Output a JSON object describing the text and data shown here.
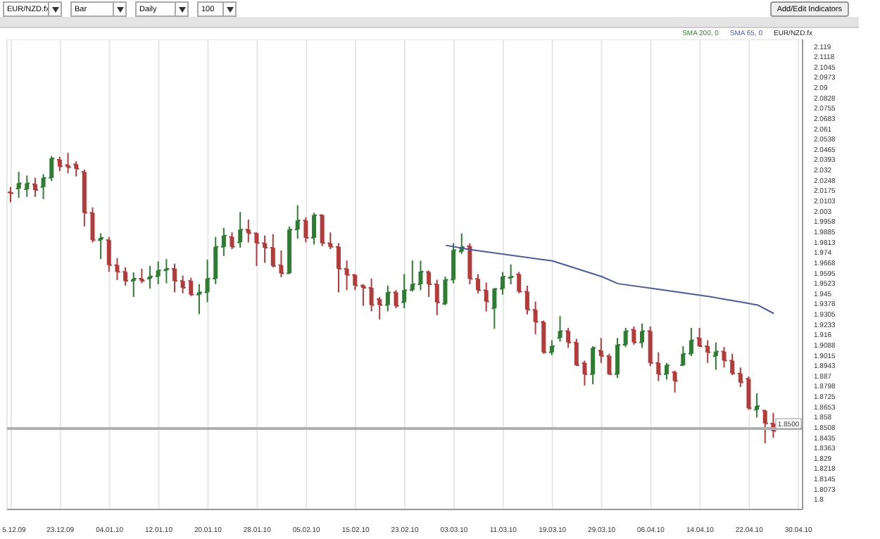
{
  "chart_data": {
    "type": "candlestick",
    "categories": [
      "5.12.09",
      null,
      null,
      null,
      null,
      null,
      "23.12.09",
      null,
      null,
      null,
      null,
      null,
      "04.01.10",
      null,
      null,
      null,
      null,
      null,
      "12.01.10",
      null,
      null,
      null,
      null,
      null,
      "20.01.10",
      null,
      null,
      null,
      null,
      null,
      "28.01.10",
      null,
      null,
      null,
      null,
      null,
      "05.02.10",
      null,
      null,
      null,
      null,
      null,
      "15.02.10",
      null,
      null,
      null,
      null,
      null,
      "23.02.10",
      null,
      null,
      null,
      null,
      null,
      "03.03.10",
      null,
      null,
      null,
      null,
      null,
      "11.03.10",
      null,
      null,
      null,
      null,
      null,
      "19.03.10",
      null,
      null,
      null,
      null,
      null,
      "29.03.10",
      null,
      null,
      null,
      null,
      null,
      "06.04.10",
      null,
      null,
      null,
      null,
      null,
      "14.04.10",
      null,
      null,
      null,
      null,
      null,
      "22.04.10",
      null,
      null,
      null,
      null,
      null,
      "30.04.10"
    ],
    "series": [
      {
        "color": "#333333",
        "ohlc": [
          [
            2.0163,
            2.0201,
            2.0093,
            2.0157
          ],
          [
            2.0189,
            2.0307,
            2.0125,
            2.0227
          ],
          [
            2.0185,
            2.0281,
            2.0131,
            2.0227
          ],
          [
            2.0221,
            2.0265,
            2.0131,
            2.0179
          ],
          [
            2.0201,
            2.0291,
            2.0115,
            2.0265
          ],
          [
            2.0265,
            2.0419,
            2.0243,
            2.0403
          ],
          [
            2.0393,
            2.0413,
            2.0313,
            2.0345
          ],
          [
            2.0355,
            2.0441,
            2.0297,
            2.0339
          ],
          [
            2.0361,
            2.0381,
            2.0275,
            2.0329
          ],
          [
            2.0307,
            2.0323,
            1.9923,
            2.0019
          ],
          [
            2.0019,
            2.0057,
            1.9811,
            1.9827
          ],
          [
            1.9827,
            1.9875,
            1.9693,
            1.9843
          ],
          [
            1.9827,
            1.9849,
            1.9603,
            1.9651
          ],
          [
            1.9651,
            1.9699,
            1.9545,
            1.9603
          ],
          [
            1.9603,
            1.9635,
            1.9507,
            1.9539
          ],
          [
            1.9539,
            1.96,
            1.9427,
            1.9555
          ],
          [
            1.9555,
            1.9625,
            1.9523,
            1.9539
          ],
          [
            1.9555,
            1.9645,
            1.9485,
            1.9571
          ],
          [
            1.9571,
            1.9677,
            1.9517,
            1.9613
          ],
          [
            1.9613,
            1.9693,
            1.9523,
            1.9625
          ],
          [
            1.9625,
            1.9661,
            1.9459,
            1.9539
          ],
          [
            1.9539,
            1.9577,
            1.9453,
            1.9491
          ],
          [
            1.9539,
            1.9561,
            1.9433,
            1.9443
          ],
          [
            1.9443,
            1.9517,
            1.9305,
            1.9459
          ],
          [
            1.9459,
            1.9689,
            1.9389,
            1.9555
          ],
          [
            1.9555,
            1.9849,
            1.9517,
            1.9779
          ],
          [
            1.9779,
            1.9913,
            1.9715,
            1.9859
          ],
          [
            1.9849,
            1.9881,
            1.9763,
            1.9779
          ],
          [
            1.9811,
            2.0025,
            1.9773,
            1.9901
          ],
          [
            1.9901,
            1.9971,
            1.9811,
            1.9875
          ],
          [
            1.9875,
            1.9881,
            1.9645,
            1.9805
          ],
          [
            1.9805,
            1.9859,
            1.9667,
            1.9773
          ],
          [
            1.9773,
            1.9869,
            1.9635,
            1.9645
          ],
          [
            1.9651,
            1.9753,
            1.9565,
            1.9593
          ],
          [
            1.9593,
            1.9923,
            1.9587,
            1.9901
          ],
          [
            1.9901,
            2.0073,
            1.9837,
            1.9965
          ],
          [
            1.9965,
            1.9987,
            1.9811,
            1.9843
          ],
          [
            1.9843,
            2.0019,
            1.9795,
            2.0003
          ],
          [
            2.0003,
            2.0009,
            1.9785,
            1.9805
          ],
          [
            1.9805,
            1.9881,
            1.9763,
            1.9779
          ],
          [
            1.9779,
            1.9805,
            1.9459,
            1.9625
          ],
          [
            1.9625,
            1.9683,
            1.9475,
            1.9581
          ],
          [
            1.9581,
            1.9587,
            1.9475,
            1.9507
          ],
          [
            1.9507,
            1.9517,
            1.9363,
            1.9491
          ],
          [
            1.9491,
            1.9555,
            1.9325,
            1.9369
          ],
          [
            1.9411,
            1.9427,
            1.9267,
            1.9369
          ],
          [
            1.9369,
            1.9507,
            1.9325,
            1.9459
          ],
          [
            1.9459,
            1.9475,
            1.9347,
            1.9363
          ],
          [
            1.9389,
            1.9587,
            1.9347,
            1.9475
          ],
          [
            1.9475,
            1.9683,
            1.9465,
            1.9517
          ],
          [
            1.9516,
            1.9682,
            1.9474,
            1.9605
          ],
          [
            1.9602,
            1.9612,
            1.9426,
            1.9516
          ],
          [
            1.9516,
            1.9548,
            1.9298,
            1.9388
          ],
          [
            1.9378,
            1.957,
            1.9368,
            1.9548
          ],
          [
            1.9548,
            1.9804,
            1.9522,
            1.9756
          ],
          [
            1.9746,
            1.9874,
            1.973,
            1.9778
          ],
          [
            1.9784,
            1.9804,
            1.9516,
            1.9554
          ],
          [
            1.9554,
            1.9586,
            1.9452,
            1.9474
          ],
          [
            1.9474,
            1.9528,
            1.9324,
            1.9394
          ],
          [
            1.9346,
            1.949,
            1.9202,
            1.9484
          ],
          [
            1.9484,
            1.9602,
            1.9442,
            1.957
          ],
          [
            1.956,
            1.9656,
            1.9516,
            1.957
          ],
          [
            1.9586,
            1.9602,
            1.9452,
            1.9464
          ],
          [
            1.9464,
            1.9506,
            1.9304,
            1.9336
          ],
          [
            1.9336,
            1.9394,
            1.9164,
            1.925
          ],
          [
            1.925,
            1.926,
            1.9026,
            1.9036
          ],
          [
            1.9036,
            1.9122,
            1.9016,
            1.908
          ],
          [
            1.9138,
            1.9292,
            1.9112,
            1.9186
          ],
          [
            1.9186,
            1.9208,
            1.9068,
            1.9106
          ],
          [
            1.9106,
            1.9132,
            1.894,
            1.8946
          ],
          [
            1.8962,
            1.8978,
            1.8802,
            1.8882
          ],
          [
            1.8882,
            1.908,
            1.8812,
            1.9068
          ],
          [
            1.9048,
            1.9138,
            1.8962,
            1.901
          ],
          [
            1.901,
            1.9026,
            1.8876,
            1.8882
          ],
          [
            1.8882,
            1.9138,
            1.8856,
            1.909
          ],
          [
            1.909,
            1.9208,
            1.9074,
            1.9186
          ],
          [
            1.9196,
            1.9218,
            1.909,
            1.9106
          ],
          [
            1.9106,
            1.924,
            1.9068,
            1.9186
          ],
          [
            1.9186,
            1.9218,
            1.894,
            1.8962
          ],
          [
            1.8962,
            1.9036,
            1.8834,
            1.8882
          ],
          [
            1.8882,
            1.8962,
            1.8844,
            1.8946
          ],
          [
            1.8898,
            1.8908,
            1.8754,
            1.8834
          ],
          [
            1.8946,
            1.908,
            1.894,
            1.9026
          ],
          [
            1.9026,
            1.9208,
            1.901,
            1.9122
          ],
          [
            1.9138,
            1.9208,
            1.9074,
            1.908
          ],
          [
            1.908,
            1.9122,
            1.8962,
            1.9036
          ],
          [
            1.901,
            1.9106,
            1.8914,
            1.9042
          ],
          [
            1.9042,
            1.9074,
            1.893,
            1.8978
          ],
          [
            1.8978,
            1.9026,
            1.8876,
            1.8888
          ],
          [
            1.8888,
            1.893,
            1.8792,
            1.8824
          ],
          [
            1.885,
            1.8866,
            1.8632,
            1.8642
          ],
          [
            1.8632,
            1.8748,
            1.8578,
            1.8658
          ],
          [
            1.8626,
            1.8632,
            1.8396,
            1.8536
          ],
          [
            1.8536,
            1.861,
            1.8434,
            1.8482
          ],
          null,
          null,
          null
        ],
        "colors": [
          "#b53a3a",
          "#2f7d32",
          "#2f7d32",
          "#b53a3a",
          "#2f7d32",
          "#2f7d32",
          "#b53a3a",
          "#b53a3a",
          "#b53a3a",
          "#b53a3a",
          "#b53a3a",
          "#2f7d32",
          "#b53a3a",
          "#b53a3a",
          "#b53a3a",
          "#2f7d32",
          "#b53a3a",
          "#2f7d32",
          "#2f7d32",
          "#2f7d32",
          "#b53a3a",
          "#b53a3a",
          "#b53a3a",
          "#2f7d32",
          "#2f7d32",
          "#2f7d32",
          "#2f7d32",
          "#b53a3a",
          "#2f7d32",
          "#b53a3a",
          "#b53a3a",
          "#b53a3a",
          "#b53a3a",
          "#b53a3a",
          "#2f7d32",
          "#2f7d32",
          "#b53a3a",
          "#2f7d32",
          "#b53a3a",
          "#b53a3a",
          "#b53a3a",
          "#b53a3a",
          "#b53a3a",
          "#b53a3a",
          "#b53a3a",
          "#b53a3a",
          "#2f7d32",
          "#b53a3a",
          "#2f7d32",
          "#2f7d32",
          "#2f7d32",
          "#b53a3a",
          "#b53a3a",
          "#2f7d32",
          "#2f7d32",
          "#2f7d32",
          "#b53a3a",
          "#b53a3a",
          "#b53a3a",
          "#2f7d32",
          "#2f7d32",
          "#2f7d32",
          "#b53a3a",
          "#b53a3a",
          "#b53a3a",
          "#b53a3a",
          "#2f7d32",
          "#2f7d32",
          "#b53a3a",
          "#b53a3a",
          "#b53a3a",
          "#2f7d32",
          "#b53a3a",
          "#b53a3a",
          "#2f7d32",
          "#2f7d32",
          "#b53a3a",
          "#2f7d32",
          "#b53a3a",
          "#b53a3a",
          "#2f7d32",
          "#b53a3a",
          "#2f7d32",
          "#2f7d32",
          "#b53a3a",
          "#b53a3a",
          "#2f7d32",
          "#b53a3a",
          "#b53a3a",
          "#b53a3a",
          "#b53a3a",
          "#2f7d32",
          "#b53a3a",
          "#b53a3a",
          null,
          null,
          null
        ]
      },
      {
        "name": "SMA 200, 0",
        "type": "line",
        "color": "#2e8b2e",
        "values": [
          null,
          null,
          null,
          null,
          null,
          null,
          null,
          null,
          null,
          null,
          null,
          null,
          null,
          null,
          null,
          null,
          null,
          null,
          null,
          null,
          null,
          null,
          null,
          null,
          null,
          null,
          null,
          null,
          null,
          null,
          null,
          null,
          null,
          null,
          null,
          null,
          null,
          null,
          null,
          null,
          null,
          null,
          null,
          null,
          null,
          null,
          null,
          null,
          null,
          null,
          null,
          null,
          null,
          null,
          null,
          null,
          null,
          null,
          null,
          null,
          null,
          null,
          null,
          null,
          null,
          null,
          null,
          null,
          null,
          null,
          null,
          null,
          null,
          null,
          null,
          null,
          null,
          null,
          null,
          null,
          null,
          null,
          null,
          null,
          null,
          null,
          null,
          null,
          null,
          null,
          null,
          null,
          null,
          null,
          null,
          null,
          null
        ]
      },
      {
        "name": "SMA 65, 0",
        "type": "line",
        "color": "#4a5aa8",
        "values": [
          null,
          null,
          null,
          null,
          null,
          null,
          null,
          null,
          null,
          null,
          null,
          null,
          null,
          null,
          null,
          null,
          null,
          null,
          null,
          null,
          null,
          null,
          null,
          null,
          null,
          null,
          null,
          null,
          null,
          null,
          null,
          null,
          null,
          null,
          null,
          null,
          null,
          null,
          null,
          null,
          null,
          null,
          null,
          null,
          null,
          null,
          null,
          null,
          null,
          null,
          null,
          null,
          null,
          1.979,
          null,
          null,
          1.976,
          null,
          null,
          null,
          null,
          null,
          null,
          null,
          null,
          null,
          1.968,
          null,
          null,
          null,
          null,
          null,
          1.957,
          null,
          1.952,
          null,
          null,
          null,
          null,
          1.948,
          null,
          null,
          null,
          null,
          null,
          1.943,
          null,
          null,
          null,
          1.939,
          null,
          1.937,
          null,
          1.931,
          null,
          null,
          null
        ]
      }
    ],
    "ylim": [
      1.793,
      2.124
    ],
    "yticks": [
      1.8,
      1.8073,
      1.8145,
      1.8218,
      1.829,
      1.8363,
      1.8435,
      1.8508,
      1.858,
      1.8653,
      1.8725,
      1.8798,
      1.887,
      1.8943,
      1.9015,
      1.9088,
      1.916,
      1.9233,
      1.9305,
      1.9378,
      1.945,
      1.9523,
      1.9595,
      1.9668,
      1.974,
      1.9813,
      1.9885,
      1.9958,
      2.003,
      2.0103,
      2.0175,
      2.0248,
      2.032,
      2.0393,
      2.0465,
      2.0538,
      2.061,
      2.0683,
      2.0755,
      2.0828,
      2.09,
      2.0973,
      2.1045,
      2.1118,
      2.119
    ],
    "grid": true,
    "legend": "top right",
    "ref_lines": [
      {
        "axis": "y",
        "value": 1.85,
        "label": "1.8500",
        "color": "#b0b0b0"
      }
    ],
    "annotations": [
      "EUR/NZD.fx",
      "Bar",
      "Daily",
      "100",
      "Add/Edit Indicators",
      "EUR/NZD.fx"
    ]
  }
}
